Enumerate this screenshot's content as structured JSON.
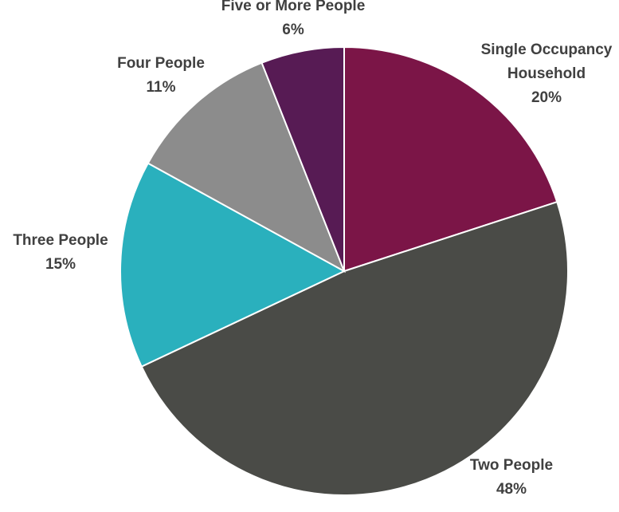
{
  "chart_data": {
    "type": "pie",
    "title": "",
    "start_angle_deg": 0,
    "direction": "clockwise",
    "slices": [
      {
        "label_lines": [
          "Single Occupancy",
          "Household"
        ],
        "value": 20,
        "value_label": "20%",
        "color": "#7b1547"
      },
      {
        "label_lines": [
          "Two People"
        ],
        "value": 48,
        "value_label": "48%",
        "color": "#4a4b47"
      },
      {
        "label_lines": [
          "Three People"
        ],
        "value": 15,
        "value_label": "15%",
        "color": "#2ab0bd"
      },
      {
        "label_lines": [
          "Four People"
        ],
        "value": 11,
        "value_label": "11%",
        "color": "#8c8c8c"
      },
      {
        "label_lines": [
          "Five or More People"
        ],
        "value": 6,
        "value_label": "6%",
        "color": "#571b54"
      }
    ]
  }
}
